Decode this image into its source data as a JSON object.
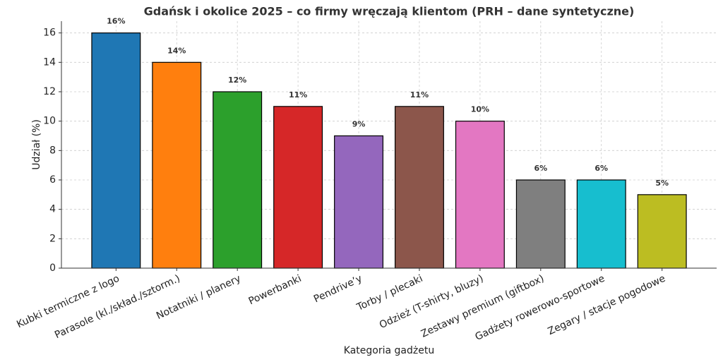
{
  "chart_data": {
    "type": "bar",
    "title": "Gdańsk i okolice 2025 – co firmy wręczają klientom (PRH – dane syntetyczne)",
    "x_label": "Kategoria gadżetu",
    "y_label": "Udział (%)",
    "categories": [
      "Kubki termiczne z logo",
      "Parasole (kl./skład./sztorm.)",
      "Notatniki / planery",
      "Powerbanki",
      "Pendrive’y",
      "Torby / plecaki",
      "Odzież (T-shirty, bluzy)",
      "Zestawy premium (giftbox)",
      "Gadżety rowerowo-sportowe",
      "Zegary / stacje pogodowe"
    ],
    "values": [
      16,
      14,
      12,
      11,
      9,
      11,
      10,
      6,
      6,
      5
    ],
    "value_labels": [
      "16%",
      "14%",
      "12%",
      "11%",
      "9%",
      "11%",
      "10%",
      "6%",
      "6%",
      "5%"
    ],
    "colors": [
      "#1f77b4",
      "#ff7f0e",
      "#2ca02c",
      "#d62728",
      "#9467bd",
      "#8c564b",
      "#e377c2",
      "#7f7f7f",
      "#17becf",
      "#bcbd22"
    ],
    "ylim": [
      0,
      16.8
    ],
    "yticks": [
      0,
      2,
      4,
      6,
      8,
      10,
      12,
      14,
      16
    ],
    "grid": true
  }
}
